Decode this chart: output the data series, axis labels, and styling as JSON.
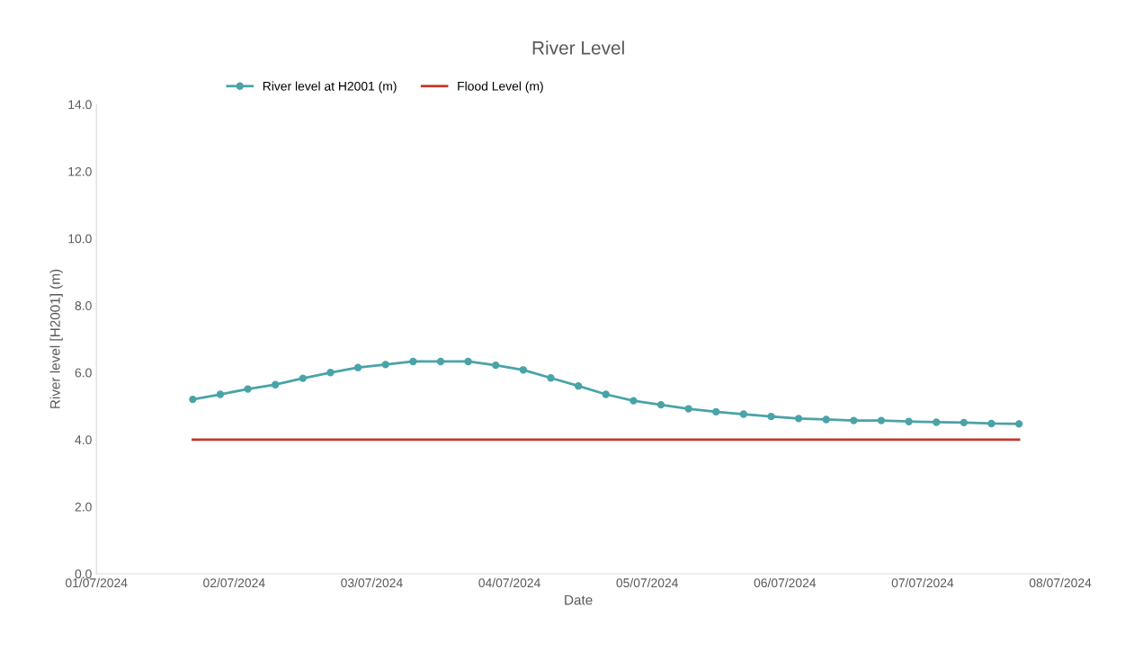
{
  "chart_data": {
    "type": "line",
    "title": "River Level",
    "xlabel": "Date",
    "ylabel": "River level [H2001] (m)",
    "xlim": [
      "2024-07-01",
      "2024-07-08"
    ],
    "ylim": [
      0,
      14
    ],
    "xticks": [
      {
        "value": "2024-07-01",
        "label": "01/07/2024"
      },
      {
        "value": "2024-07-02",
        "label": "02/07/2024"
      },
      {
        "value": "2024-07-03",
        "label": "03/07/2024"
      },
      {
        "value": "2024-07-04",
        "label": "04/07/2024"
      },
      {
        "value": "2024-07-05",
        "label": "05/07/2024"
      },
      {
        "value": "2024-07-06",
        "label": "06/07/2024"
      },
      {
        "value": "2024-07-07",
        "label": "07/07/2024"
      },
      {
        "value": "2024-07-08",
        "label": "08/07/2024"
      }
    ],
    "yticks": [
      {
        "value": 0,
        "label": "0.0"
      },
      {
        "value": 2,
        "label": "2.0"
      },
      {
        "value": 4,
        "label": "4.0"
      },
      {
        "value": 6,
        "label": "6.0"
      },
      {
        "value": 8,
        "label": "8.0"
      },
      {
        "value": 10,
        "label": "10.0"
      },
      {
        "value": 12,
        "label": "12.0"
      },
      {
        "value": 14,
        "label": "14.0"
      }
    ],
    "legend": "top",
    "grid": false,
    "series": [
      {
        "name": "River level at H2001 (m)",
        "color": "#4aa3a8",
        "marker": "circle",
        "x": [
          "2024-07-01T16:48",
          "2024-07-01T21:36",
          "2024-07-02T02:24",
          "2024-07-02T07:12",
          "2024-07-02T12:00",
          "2024-07-02T16:48",
          "2024-07-02T21:36",
          "2024-07-03T02:24",
          "2024-07-03T07:12",
          "2024-07-03T12:00",
          "2024-07-03T16:48",
          "2024-07-03T21:36",
          "2024-07-04T02:24",
          "2024-07-04T07:12",
          "2024-07-04T12:00",
          "2024-07-04T16:48",
          "2024-07-04T21:36",
          "2024-07-05T02:24",
          "2024-07-05T07:12",
          "2024-07-05T12:00",
          "2024-07-05T16:48",
          "2024-07-05T21:36",
          "2024-07-06T02:24",
          "2024-07-06T07:12",
          "2024-07-06T12:00",
          "2024-07-06T16:48",
          "2024-07-06T21:36",
          "2024-07-07T02:24",
          "2024-07-07T07:12",
          "2024-07-07T12:00",
          "2024-07-07T16:48"
        ],
        "values": [
          5.2,
          5.35,
          5.51,
          5.64,
          5.83,
          6.0,
          6.15,
          6.24,
          6.33,
          6.33,
          6.33,
          6.22,
          6.08,
          5.84,
          5.6,
          5.35,
          5.16,
          5.04,
          4.92,
          4.83,
          4.76,
          4.69,
          4.63,
          4.6,
          4.57,
          4.57,
          4.54,
          4.52,
          4.51,
          4.48,
          4.47
        ]
      },
      {
        "name": "Flood Level (m)",
        "color": "#c0392b",
        "marker": "none",
        "x": [
          "2024-07-01T16:48",
          "2024-07-07T16:48"
        ],
        "values": [
          4.0,
          4.0
        ]
      }
    ]
  }
}
